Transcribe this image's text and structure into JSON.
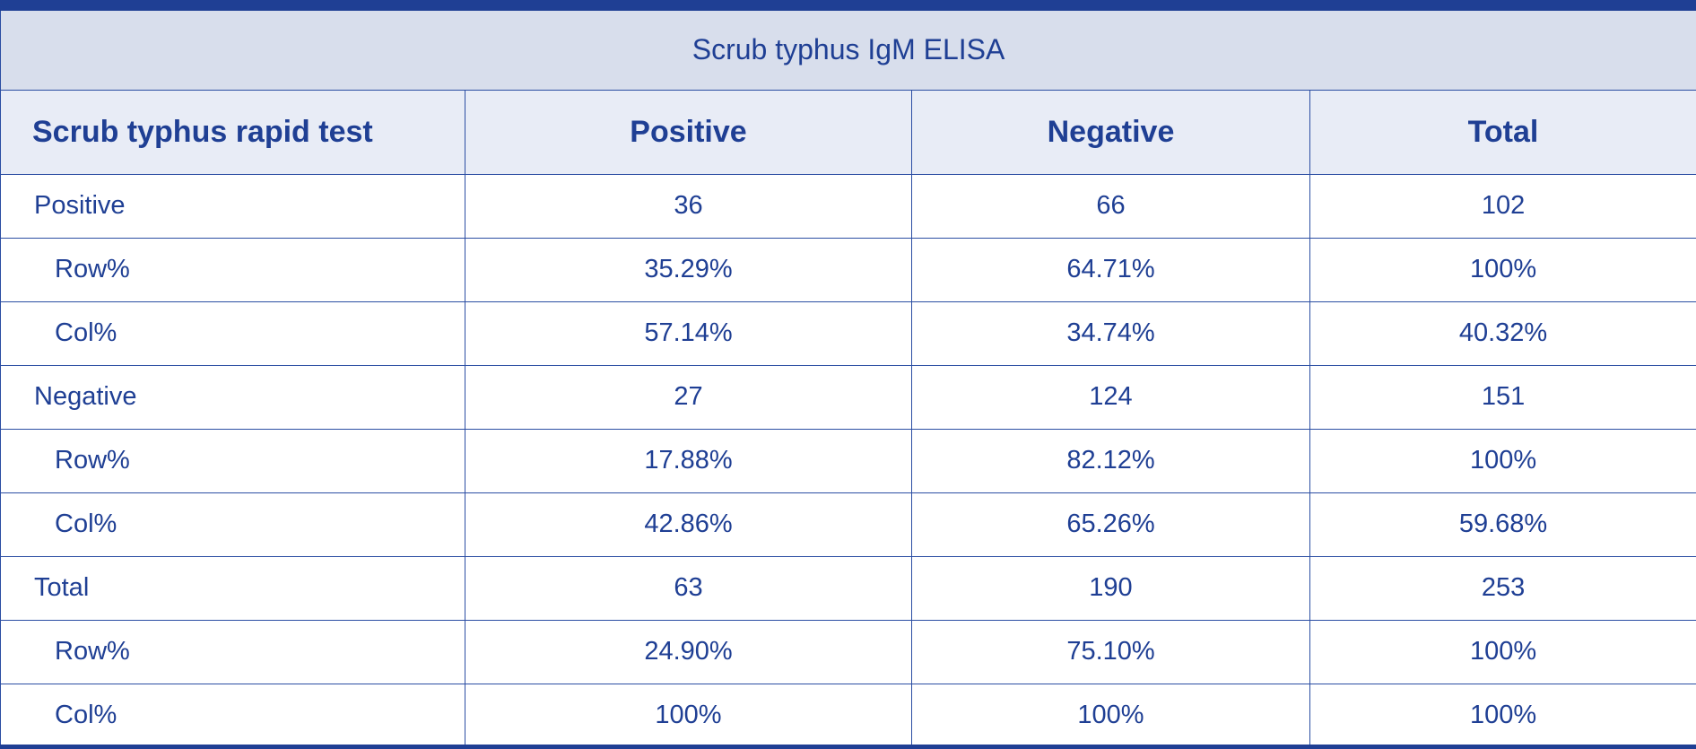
{
  "table": {
    "title": "Scrub typhus IgM ELISA",
    "headers": [
      "Scrub typhus rapid test",
      "Positive",
      "Negative",
      "Total"
    ],
    "rows": [
      {
        "label": "Positive",
        "sub": false,
        "values": [
          "36",
          "66",
          "102"
        ]
      },
      {
        "label": "Row%",
        "sub": true,
        "values": [
          "35.29%",
          "64.71%",
          "100%"
        ]
      },
      {
        "label": "Col%",
        "sub": true,
        "values": [
          "57.14%",
          "34.74%",
          "40.32%"
        ]
      },
      {
        "label": "Negative",
        "sub": false,
        "values": [
          "27",
          "124",
          "151"
        ]
      },
      {
        "label": "Row%",
        "sub": true,
        "values": [
          "17.88%",
          "82.12%",
          "100%"
        ]
      },
      {
        "label": "Col%",
        "sub": true,
        "values": [
          "42.86%",
          "65.26%",
          "59.68%"
        ]
      },
      {
        "label": "Total",
        "sub": false,
        "values": [
          "63",
          "190",
          "253"
        ]
      },
      {
        "label": "Row%",
        "sub": true,
        "values": [
          "24.90%",
          "75.10%",
          "100%"
        ]
      },
      {
        "label": "Col%",
        "sub": true,
        "values": [
          "100%",
          "100%",
          "100%"
        ]
      }
    ],
    "colors": {
      "text": "#1f3f94",
      "border": "#2b4ea3",
      "title_bg": "#d8deec",
      "header_bg": "#e8ecf6",
      "accent_bar": "#1f3f94"
    }
  }
}
